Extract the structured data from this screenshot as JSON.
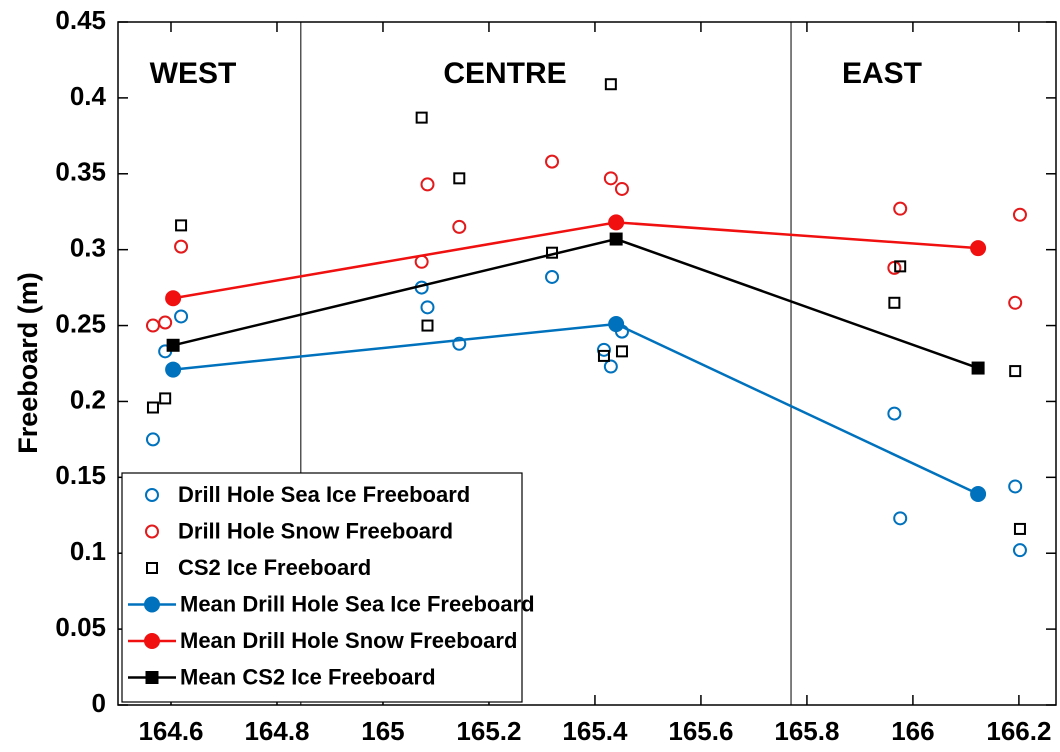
{
  "chart_data": {
    "type": "scatter",
    "ylabel": "Freeboard (m)",
    "annotations": [
      "WEST",
      "CENTRE",
      "EAST"
    ],
    "dividers": [
      164.845,
      165.77
    ],
    "xlim": [
      164.5,
      166.27
    ],
    "ylim": [
      0,
      0.45
    ],
    "xticks": [
      164.6,
      164.8,
      165,
      165.2,
      165.4,
      165.6,
      165.8,
      166,
      166.2
    ],
    "yticks": [
      0,
      0.05,
      0.1,
      0.15,
      0.2,
      0.25,
      0.3,
      0.35,
      0.4,
      0.45
    ],
    "legend": "lower left",
    "series": [
      {
        "name": "Drill Hole Sea Ice Freeboard",
        "color": "#0072bd",
        "marker": "circle",
        "filled": false,
        "line": false,
        "x": [
          164.566,
          164.589,
          164.619,
          165.073,
          165.084,
          165.144,
          165.319,
          165.417,
          165.43,
          165.451,
          165.965,
          165.976,
          166.193,
          166.202
        ],
        "values": [
          0.175,
          0.233,
          0.256,
          0.275,
          0.262,
          0.238,
          0.282,
          0.234,
          0.223,
          0.246,
          0.192,
          0.123,
          0.144,
          0.102
        ]
      },
      {
        "name": "Drill Hole Snow Freeboard",
        "color": "#e31a1c",
        "marker": "circle",
        "filled": false,
        "line": false,
        "x": [
          164.566,
          164.589,
          164.619,
          165.073,
          165.084,
          165.144,
          165.319,
          165.43,
          165.451,
          165.965,
          165.976,
          166.193,
          166.202
        ],
        "values": [
          0.25,
          0.252,
          0.302,
          0.292,
          0.343,
          0.315,
          0.358,
          0.347,
          0.34,
          0.288,
          0.327,
          0.265,
          0.323
        ]
      },
      {
        "name": "CS2 Ice Freeboard",
        "color": "#000000",
        "marker": "square",
        "filled": false,
        "line": false,
        "x": [
          164.566,
          164.589,
          164.619,
          165.073,
          165.084,
          165.144,
          165.319,
          165.417,
          165.43,
          165.451,
          165.965,
          165.976,
          166.193,
          166.202
        ],
        "values": [
          0.196,
          0.202,
          0.316,
          0.387,
          0.25,
          0.347,
          0.298,
          0.23,
          0.409,
          0.233,
          0.265,
          0.289,
          0.22,
          0.116
        ]
      },
      {
        "name": "Mean Drill Hole Sea Ice Freeboard",
        "color": "#0072bd",
        "marker": "circle",
        "filled": true,
        "line": true,
        "x": [
          164.604,
          165.44,
          166.123
        ],
        "values": [
          0.221,
          0.251,
          0.139
        ]
      },
      {
        "name": "Mean Drill Hole Snow Freeboard",
        "color": "#f01010",
        "marker": "circle",
        "filled": true,
        "line": true,
        "x": [
          164.604,
          165.44,
          166.123
        ],
        "values": [
          0.268,
          0.318,
          0.301
        ]
      },
      {
        "name": "Mean CS2 Ice Freeboard",
        "color": "#000000",
        "marker": "square",
        "filled": true,
        "line": true,
        "x": [
          164.604,
          165.44,
          166.123
        ],
        "values": [
          0.237,
          0.307,
          0.222
        ]
      }
    ]
  }
}
